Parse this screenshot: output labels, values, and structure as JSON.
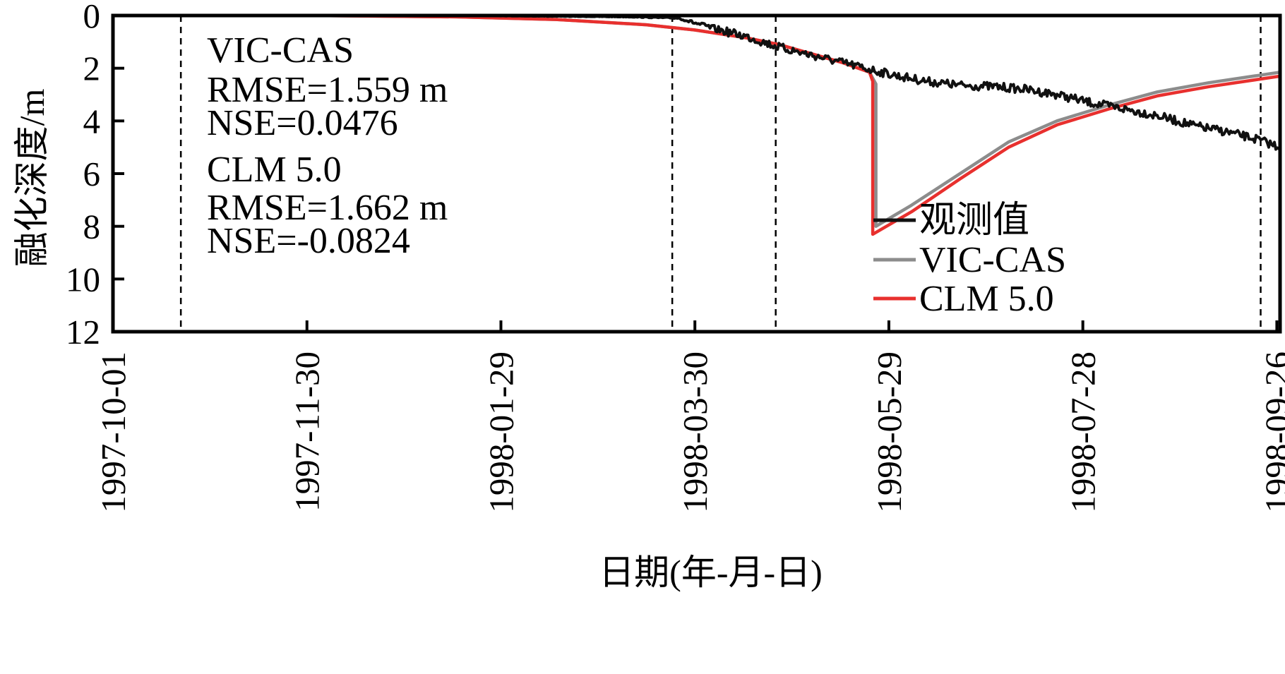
{
  "chart_data": {
    "type": "line",
    "xlabel": "日期(年-月-日)",
    "ylabel": "融化深度/m",
    "x_ticks": [
      "1997-10-01",
      "1997-11-30",
      "1998-01-29",
      "1998-03-30",
      "1998-05-29",
      "1998-07-28",
      "1998-09-26"
    ],
    "y_ticks": [
      0,
      2,
      4,
      6,
      8,
      10,
      12
    ],
    "xlim": [
      "1997-10-01",
      "1998-09-27"
    ],
    "ylim": [
      0,
      12
    ],
    "y_inverted": true,
    "grid": false,
    "vertical_reference_lines": [
      "1997-10-22",
      "1998-03-23",
      "1998-04-24",
      "1998-09-21"
    ],
    "legend_position": "bottom-right",
    "series": [
      {
        "name": "观测值",
        "color": "#111111",
        "noisy": true,
        "points": [
          [
            "1997-10-01",
            0.0
          ],
          [
            "1998-01-15",
            0.0
          ],
          [
            "1998-03-10",
            0.05
          ],
          [
            "1998-03-25",
            0.1
          ],
          [
            "1998-04-05",
            0.5
          ],
          [
            "1998-04-15",
            0.8
          ],
          [
            "1998-04-25",
            1.2
          ],
          [
            "1998-05-05",
            1.5
          ],
          [
            "1998-05-15",
            1.8
          ],
          [
            "1998-05-25",
            2.1
          ],
          [
            "1998-06-01",
            2.3
          ],
          [
            "1998-06-10",
            2.5
          ],
          [
            "1998-06-20",
            2.65
          ],
          [
            "1998-07-01",
            2.7
          ],
          [
            "1998-07-10",
            2.8
          ],
          [
            "1998-07-20",
            3.0
          ],
          [
            "1998-07-30",
            3.3
          ],
          [
            "1998-08-10",
            3.55
          ],
          [
            "1998-08-20",
            3.8
          ],
          [
            "1998-09-01",
            4.2
          ],
          [
            "1998-09-10",
            4.4
          ],
          [
            "1998-09-20",
            4.7
          ],
          [
            "1998-09-27",
            5.0
          ]
        ]
      },
      {
        "name": "VIC-CAS",
        "color": "#8c8c8c",
        "points": [
          [
            "1997-10-01",
            0.0
          ],
          [
            "1997-12-01",
            0.0
          ],
          [
            "1998-01-15",
            0.05
          ],
          [
            "1998-02-15",
            0.15
          ],
          [
            "1998-03-15",
            0.35
          ],
          [
            "1998-03-30",
            0.55
          ],
          [
            "1998-04-15",
            0.85
          ],
          [
            "1998-04-25",
            1.1
          ],
          [
            "1998-05-05",
            1.45
          ],
          [
            "1998-05-15",
            1.8
          ],
          [
            "1998-05-23",
            2.15
          ],
          [
            "1998-05-25",
            2.6
          ],
          [
            "1998-05-25",
            8.0
          ],
          [
            "1998-06-05",
            7.2
          ],
          [
            "1998-06-20",
            6.0
          ],
          [
            "1998-07-05",
            4.8
          ],
          [
            "1998-07-20",
            4.0
          ],
          [
            "1998-08-05",
            3.4
          ],
          [
            "1998-08-20",
            2.9
          ],
          [
            "1998-09-05",
            2.55
          ],
          [
            "1998-09-27",
            2.15
          ]
        ]
      },
      {
        "name": "CLM 5.0",
        "color": "#e8302e",
        "points": [
          [
            "1997-10-01",
            0.0
          ],
          [
            "1997-12-01",
            0.0
          ],
          [
            "1998-01-15",
            0.05
          ],
          [
            "1998-02-15",
            0.15
          ],
          [
            "1998-03-15",
            0.35
          ],
          [
            "1998-03-30",
            0.55
          ],
          [
            "1998-04-15",
            0.85
          ],
          [
            "1998-04-25",
            1.1
          ],
          [
            "1998-05-05",
            1.45
          ],
          [
            "1998-05-15",
            1.8
          ],
          [
            "1998-05-23",
            2.15
          ],
          [
            "1998-05-24",
            2.5
          ],
          [
            "1998-05-24",
            8.3
          ],
          [
            "1998-06-05",
            7.45
          ],
          [
            "1998-06-20",
            6.2
          ],
          [
            "1998-07-05",
            5.0
          ],
          [
            "1998-07-20",
            4.15
          ],
          [
            "1998-08-05",
            3.55
          ],
          [
            "1998-08-20",
            3.05
          ],
          [
            "1998-09-05",
            2.7
          ],
          [
            "1998-09-27",
            2.3
          ]
        ]
      }
    ],
    "annotations": [
      [
        "VIC-CAS",
        "RMSE=1.559 m",
        "NSE=0.0476"
      ],
      [
        "CLM 5.0",
        "RMSE=1.662 m",
        "NSE=-0.0824"
      ]
    ]
  }
}
